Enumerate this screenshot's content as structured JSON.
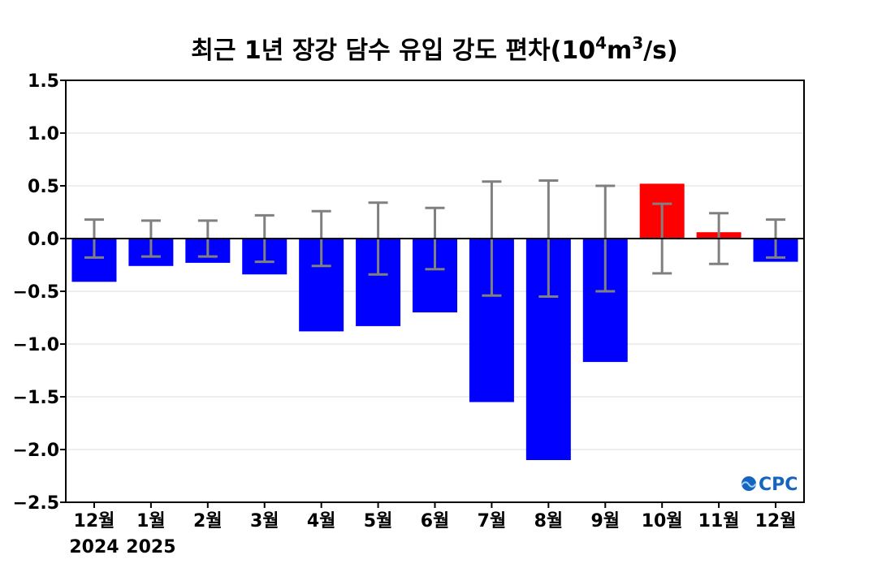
{
  "chart_data": {
    "type": "bar",
    "title": "최근 1년 장강 담수 유입 강도 편차(10",
    "title_exp1": "4",
    "title_mid": "m",
    "title_exp2": "3",
    "title_end": "/s)",
    "categories": [
      "12월",
      "1월",
      "2월",
      "3월",
      "4월",
      "5월",
      "6월",
      "7월",
      "8월",
      "9월",
      "10월",
      "11월",
      "12월"
    ],
    "year_labels": [
      "2024",
      "2025"
    ],
    "values": [
      -0.41,
      -0.26,
      -0.23,
      -0.34,
      -0.88,
      -0.83,
      -0.7,
      -1.55,
      -2.1,
      -1.17,
      0.52,
      0.06,
      -0.22
    ],
    "error_bars": [
      0.18,
      0.17,
      0.17,
      0.22,
      0.26,
      0.34,
      0.29,
      0.54,
      0.55,
      0.5,
      0.33,
      0.24,
      0.18
    ],
    "ylim": [
      -2.5,
      1.5
    ],
    "yticks": [
      1.5,
      1.0,
      0.5,
      0.0,
      -0.5,
      -1.0,
      -1.5,
      -2.0,
      -2.5
    ],
    "ytick_labels": [
      "1.5",
      "1.0",
      "0.5",
      "0.0",
      "−0.5",
      "−1.0",
      "−1.5",
      "−2.0",
      "−2.5"
    ],
    "grid": true,
    "colors": {
      "negative": "#0000ff",
      "positive": "#ff0000",
      "error_bar": "#808080",
      "grid": "#dddddd"
    }
  },
  "logo": {
    "text": "CPC",
    "color": "#1565c0"
  }
}
